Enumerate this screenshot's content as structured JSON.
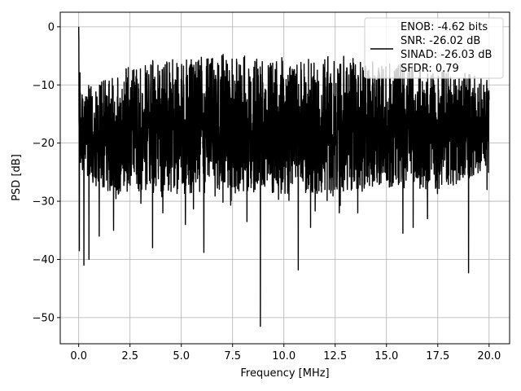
{
  "chart_data": {
    "type": "line",
    "title": "",
    "xlabel": "Frequency [MHz]",
    "ylabel": "PSD [dB]",
    "xlim": [
      -0.9,
      21.0
    ],
    "ylim": [
      -54.5,
      2.5
    ],
    "xticks": [
      0.0,
      2.5,
      5.0,
      7.5,
      10.0,
      12.5,
      15.0,
      17.5,
      20.0
    ],
    "xtick_labels": [
      "0.0",
      "2.5",
      "5.0",
      "7.5",
      "10.0",
      "12.5",
      "15.0",
      "17.5",
      "20.0"
    ],
    "yticks": [
      0,
      -10,
      -20,
      -30,
      -40,
      -50
    ],
    "ytick_labels": [
      "0",
      "−10",
      "−20",
      "−30",
      "−40",
      "−50"
    ],
    "grid": true,
    "legend_position": "top-right",
    "legend_lines": [
      "ENOB: -4.62 bits",
      "SNR: -26.02 dB",
      "SINAD: -26.03 dB",
      "SFDR: 0.79"
    ],
    "series": [
      {
        "color": "#000000",
        "envelope_upper": [
          [
            0.0,
            0
          ],
          [
            0.1,
            -8
          ],
          [
            0.5,
            -10
          ],
          [
            1.0,
            -9
          ],
          [
            1.5,
            -8
          ],
          [
            2.0,
            -7
          ],
          [
            2.5,
            -7
          ],
          [
            3.0,
            -6
          ],
          [
            3.5,
            -6
          ],
          [
            4.0,
            -5
          ],
          [
            5.0,
            -5
          ],
          [
            6.0,
            -5
          ],
          [
            7.0,
            -4.5
          ],
          [
            8.0,
            -4.5
          ],
          [
            9.0,
            -5
          ],
          [
            10.0,
            -5
          ],
          [
            11.0,
            -5
          ],
          [
            12.0,
            -5
          ],
          [
            13.0,
            -5
          ],
          [
            14.0,
            -6
          ],
          [
            15.0,
            -6
          ],
          [
            16.0,
            -6.5
          ],
          [
            17.0,
            -7
          ],
          [
            18.0,
            -7.5
          ],
          [
            19.0,
            -8
          ],
          [
            20.0,
            -9
          ]
        ],
        "envelope_lower": [
          [
            0.0,
            -25
          ],
          [
            1.0,
            -29
          ],
          [
            2.0,
            -30
          ],
          [
            4.0,
            -30
          ],
          [
            6.0,
            -30
          ],
          [
            8.0,
            -30
          ],
          [
            10.0,
            -30
          ],
          [
            12.0,
            -30
          ],
          [
            14.0,
            -29
          ],
          [
            16.0,
            -29
          ],
          [
            18.0,
            -29
          ],
          [
            20.0,
            -25
          ]
        ],
        "spikes": [
          [
            0.0,
            0
          ],
          [
            0.03,
            -38.5
          ],
          [
            0.25,
            -41
          ],
          [
            0.5,
            -40
          ],
          [
            1.0,
            -36
          ],
          [
            1.7,
            -35
          ],
          [
            3.6,
            -38
          ],
          [
            4.1,
            -32
          ],
          [
            5.2,
            -34
          ],
          [
            6.1,
            -38.8
          ],
          [
            8.2,
            -33.5
          ],
          [
            8.85,
            -51.5
          ],
          [
            10.7,
            -41.8
          ],
          [
            11.3,
            -34.5
          ],
          [
            12.7,
            -32
          ],
          [
            13.6,
            -32
          ],
          [
            15.8,
            -35.5
          ],
          [
            16.3,
            -34.5
          ],
          [
            17.0,
            -33
          ],
          [
            19.0,
            -42.3
          ],
          [
            19.9,
            -28
          ]
        ]
      }
    ]
  }
}
